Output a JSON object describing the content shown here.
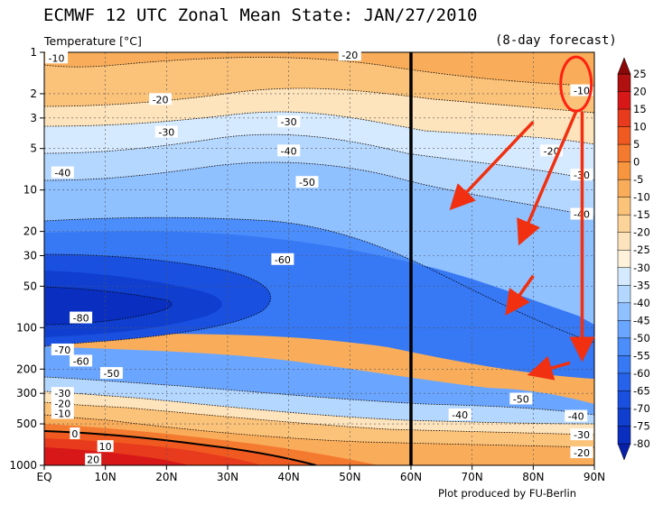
{
  "chart_data": {
    "type": "heatmap",
    "title": "ECMWF 12 UTC Zonal Mean State: JAN/27/2010",
    "subtitle": "(8-day forecast)",
    "variable_label": "Temperature [°C]",
    "credit": "Plot produced by FU-Berlin",
    "x_ticks": [
      "EQ",
      "10N",
      "20N",
      "30N",
      "40N",
      "50N",
      "60N",
      "70N",
      "80N",
      "90N"
    ],
    "x_range_deg": [
      0,
      90
    ],
    "y_ticks": [
      1,
      2,
      3,
      5,
      10,
      20,
      30,
      50,
      100,
      200,
      300,
      500,
      1000
    ],
    "y_range_hpa": [
      1,
      1000
    ],
    "y_scale": "log",
    "highlight_latitude": 60,
    "colorbar_levels": [
      25,
      20,
      15,
      10,
      5,
      0,
      -5,
      -10,
      -15,
      -20,
      -25,
      -30,
      -35,
      -40,
      -45,
      -50,
      -55,
      -60,
      -65,
      -70,
      -75,
      -80
    ],
    "colorbar_colors": [
      "#b01010",
      "#d81818",
      "#e83a1c",
      "#f05a20",
      "#f47a30",
      "#f7963f",
      "#f9ad5a",
      "#fbc27a",
      "#fcd49a",
      "#fde4bc",
      "#fff2da",
      "#d6eaff",
      "#b4d7ff",
      "#8fc0ff",
      "#6aa6ff",
      "#4b8dfb",
      "#3778f4",
      "#2663ea",
      "#1a50e0",
      "#103fd0",
      "#0a2fc0"
    ],
    "contour_labels": [
      {
        "text": "-10",
        "lat": 2,
        "p": 1.1
      },
      {
        "text": "-20",
        "lat": 50,
        "p": 1.05
      },
      {
        "text": "-20",
        "lat": 19,
        "p": 2.2
      },
      {
        "text": "-30",
        "lat": 40,
        "p": 3.2
      },
      {
        "text": "-30",
        "lat": 20,
        "p": 3.8
      },
      {
        "text": "-40",
        "lat": 40,
        "p": 5.2
      },
      {
        "text": "-40",
        "lat": 3,
        "p": 7.5
      },
      {
        "text": "-50",
        "lat": 43,
        "p": 8.8
      },
      {
        "text": "-60",
        "lat": 39,
        "p": 32
      },
      {
        "text": "-80",
        "lat": 6,
        "p": 85
      },
      {
        "text": "-70",
        "lat": 3,
        "p": 145
      },
      {
        "text": "-60",
        "lat": 6,
        "p": 175
      },
      {
        "text": "-50",
        "lat": 11,
        "p": 215
      },
      {
        "text": "-30",
        "lat": 3,
        "p": 300
      },
      {
        "text": "-20",
        "lat": 3,
        "p": 355
      },
      {
        "text": "-10",
        "lat": 3,
        "p": 420
      },
      {
        "text": "0",
        "lat": 5,
        "p": 590
      },
      {
        "text": "10",
        "lat": 10,
        "p": 730
      },
      {
        "text": "20",
        "lat": 8,
        "p": 910
      },
      {
        "text": "-50",
        "lat": 78,
        "p": 330
      },
      {
        "text": "-40",
        "lat": 68,
        "p": 430
      },
      {
        "text": "-40",
        "lat": 87,
        "p": 440
      },
      {
        "text": "-30",
        "lat": 88,
        "p": 600
      },
      {
        "text": "-20",
        "lat": 89,
        "p": 810
      },
      {
        "text": "-10",
        "lat": 88,
        "p": 1.9
      },
      {
        "text": "-20",
        "lat": 83,
        "p": 5.2
      },
      {
        "text": "-30",
        "lat": 88,
        "p": 7.8
      },
      {
        "text": "-40",
        "lat": 88,
        "p": 15
      }
    ],
    "annotations": [
      {
        "type": "circle",
        "lat": 87,
        "p": 1.7
      },
      {
        "type": "arrow",
        "from_lat": 80,
        "from_p": 3.2,
        "to_lat": 67,
        "to_p": 13
      },
      {
        "type": "arrow",
        "from_lat": 87,
        "from_p": 2.7,
        "to_lat": 78,
        "to_p": 23
      },
      {
        "type": "arrow",
        "from_lat": 80,
        "from_p": 42,
        "to_lat": 76,
        "to_p": 75
      },
      {
        "type": "arrow",
        "from_lat": 88,
        "from_p": 2.7,
        "to_lat": 88,
        "to_p": 160
      },
      {
        "type": "arrow",
        "from_lat": 86,
        "from_p": 180,
        "to_lat": 80,
        "to_p": 215
      }
    ]
  }
}
